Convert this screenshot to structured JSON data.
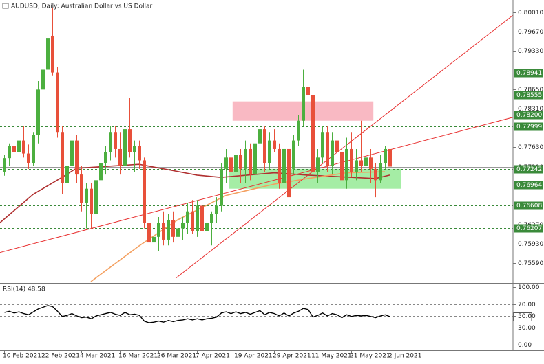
{
  "chart_data": [
    {
      "type": "candlestick",
      "title": "AUDUSD, Daily:  Australian Dollar vs US Dollar",
      "categories": [
        "10 Feb 2021",
        null,
        null,
        null,
        null,
        null,
        null,
        null,
        "22 Feb 2021",
        null,
        null,
        null,
        null,
        null,
        null,
        null,
        "4 Mar 2021",
        null,
        null,
        null,
        null,
        null,
        null,
        null,
        "16 Mar 2021",
        null,
        null,
        null,
        null,
        null,
        null,
        null,
        "26 Mar 2021",
        null,
        null,
        null,
        null,
        null,
        null,
        null,
        "7 Apr 2021",
        null,
        null,
        null,
        null,
        null,
        null,
        null,
        "19 Apr 2021",
        null,
        null,
        null,
        null,
        null,
        null,
        null,
        "29 Apr 2021",
        null,
        null,
        null,
        null,
        null,
        null,
        null,
        "11 May 2021",
        null,
        null,
        null,
        null,
        null,
        null,
        null,
        "21 May 2021",
        null,
        null,
        null,
        null,
        null,
        null,
        null,
        "2 Jun 2021"
      ],
      "open": [
        0.772,
        0.7744,
        0.7765,
        0.7755,
        0.7775,
        0.7752,
        0.7735,
        0.7785,
        0.7865,
        0.79,
        0.796,
        0.7895,
        0.779,
        0.77,
        0.773,
        0.7775,
        0.7715,
        0.7665,
        0.769,
        0.7645,
        0.7705,
        0.7735,
        0.7755,
        0.779,
        0.776,
        0.773,
        0.7795,
        0.7755,
        0.7765,
        0.774,
        0.763,
        0.7595,
        0.7605,
        0.763,
        0.76,
        0.7635,
        0.7605,
        0.762,
        0.763,
        0.765,
        0.7615,
        0.766,
        0.7615,
        0.763,
        0.7645,
        0.766,
        0.7725,
        0.7745,
        0.772,
        0.775,
        0.7725,
        0.776,
        0.7715,
        0.777,
        0.7795,
        0.7735,
        0.7775,
        0.776,
        0.77,
        0.776,
        0.7725,
        0.7775,
        0.781,
        0.787,
        0.7855,
        0.772,
        0.7745,
        0.779,
        0.773,
        0.7775,
        0.7755,
        0.7705,
        0.776,
        0.772,
        0.774,
        0.773,
        0.7745,
        0.7725,
        0.7705,
        0.7735,
        0.776
      ],
      "high": [
        0.775,
        0.777,
        0.7785,
        0.779,
        0.78,
        0.7768,
        0.779,
        0.788,
        0.792,
        0.7975,
        0.801,
        0.7905,
        0.78,
        0.774,
        0.779,
        0.7785,
        0.773,
        0.77,
        0.77,
        0.772,
        0.774,
        0.7765,
        0.78,
        0.78,
        0.779,
        0.7805,
        0.785,
        0.7775,
        0.7775,
        0.7745,
        0.764,
        0.762,
        0.764,
        0.765,
        0.7645,
        0.765,
        0.7625,
        0.764,
        0.7665,
        0.767,
        0.767,
        0.768,
        0.764,
        0.765,
        0.7675,
        0.7735,
        0.776,
        0.777,
        0.7815,
        0.776,
        0.7775,
        0.777,
        0.778,
        0.781,
        0.78,
        0.779,
        0.7795,
        0.777,
        0.778,
        0.777,
        0.7785,
        0.782,
        0.79,
        0.788,
        0.787,
        0.776,
        0.78,
        0.78,
        0.779,
        0.7815,
        0.778,
        0.778,
        0.779,
        0.776,
        0.781,
        0.776,
        0.776,
        0.7735,
        0.775,
        0.7765,
        0.777
      ],
      "low": [
        0.7713,
        0.773,
        0.7745,
        0.774,
        0.7745,
        0.7725,
        0.773,
        0.777,
        0.784,
        0.788,
        0.789,
        0.778,
        0.768,
        0.769,
        0.772,
        0.77,
        0.765,
        0.762,
        0.762,
        0.7635,
        0.7695,
        0.7715,
        0.774,
        0.7745,
        0.7715,
        0.7725,
        0.7745,
        0.772,
        0.7725,
        0.762,
        0.757,
        0.7565,
        0.758,
        0.759,
        0.759,
        0.7595,
        0.7545,
        0.76,
        0.761,
        0.761,
        0.7605,
        0.7605,
        0.758,
        0.759,
        0.763,
        0.765,
        0.77,
        0.7705,
        0.771,
        0.77,
        0.77,
        0.7705,
        0.771,
        0.7755,
        0.772,
        0.7725,
        0.7755,
        0.769,
        0.768,
        0.766,
        0.7715,
        0.7765,
        0.78,
        0.783,
        0.771,
        0.77,
        0.7735,
        0.772,
        0.7715,
        0.774,
        0.769,
        0.769,
        0.771,
        0.7705,
        0.772,
        0.7715,
        0.77,
        0.7675,
        0.77,
        0.7725,
        0.772
      ],
      "close": [
        0.7744,
        0.7765,
        0.7755,
        0.7775,
        0.7752,
        0.7735,
        0.7785,
        0.7865,
        0.79,
        0.7955,
        0.7895,
        0.779,
        0.77,
        0.773,
        0.7775,
        0.7715,
        0.7665,
        0.769,
        0.7645,
        0.7705,
        0.7735,
        0.7755,
        0.779,
        0.776,
        0.773,
        0.7795,
        0.7755,
        0.7765,
        0.774,
        0.763,
        0.7595,
        0.7605,
        0.763,
        0.76,
        0.7635,
        0.7605,
        0.762,
        0.763,
        0.765,
        0.7615,
        0.766,
        0.7615,
        0.763,
        0.7645,
        0.766,
        0.7725,
        0.7745,
        0.772,
        0.775,
        0.7725,
        0.776,
        0.7715,
        0.777,
        0.7795,
        0.7735,
        0.7775,
        0.776,
        0.77,
        0.776,
        0.7675,
        0.7775,
        0.781,
        0.787,
        0.7855,
        0.772,
        0.7745,
        0.779,
        0.773,
        0.7775,
        0.7755,
        0.7705,
        0.776,
        0.772,
        0.774,
        0.773,
        0.7745,
        0.7725,
        0.7705,
        0.7735,
        0.776,
        0.7729
      ],
      "up_color": "#4caf3f",
      "down_color": "#e8503a",
      "ylim": [
        0.7526,
        0.8023
      ],
      "yticks": [
        {
          "value": 0.8001,
          "label": "0.80010"
        },
        {
          "value": 0.7967,
          "label": "0.79670"
        },
        {
          "value": 0.7933,
          "label": "0.79330"
        },
        {
          "value": 0.7865,
          "label": "0.78650"
        },
        {
          "value": 0.7831,
          "label": "0.78310"
        },
        {
          "value": 0.7763,
          "label": "0.77630"
        },
        {
          "value": 0.7729,
          "label": "0.77290"
        },
        {
          "value": 0.7627,
          "label": "0.76270"
        },
        {
          "value": 0.7593,
          "label": "0.75930"
        },
        {
          "value": 0.7559,
          "label": "0.75590"
        }
      ],
      "levels": [
        {
          "value": 0.78941,
          "label": "0.78941"
        },
        {
          "value": 0.78555,
          "label": "0.78555"
        },
        {
          "value": 0.782,
          "label": "0.78200"
        },
        {
          "value": 0.77999,
          "label": "0.77999"
        },
        {
          "value": 0.77242,
          "label": "0.77242"
        },
        {
          "value": 0.76964,
          "label": "0.76964"
        },
        {
          "value": 0.76608,
          "label": "0.76608"
        },
        {
          "value": 0.76207,
          "label": "0.76207"
        }
      ],
      "level_color": "#3a8a3a",
      "price_line": 0.7729,
      "moving_averages": [
        {
          "color": "#b03030",
          "x": [
            -1,
            6,
            12,
            15,
            28,
            40,
            45,
            56,
            63,
            70,
            77,
            80
          ],
          "values": [
            0.7629,
            0.768,
            0.771,
            0.7726,
            0.7733,
            0.7714,
            0.771,
            0.7718,
            0.7714,
            0.7711,
            0.7708,
            0.7714
          ]
        },
        {
          "color": "#f4a060",
          "x": [
            18,
            28,
            36,
            46,
            56,
            63,
            71,
            79
          ],
          "values": [
            0.7526,
            0.7589,
            0.7635,
            0.7678,
            0.7698,
            0.7708,
            0.7718,
            0.772
          ]
        }
      ],
      "trendlines": [
        {
          "color": "#e83030",
          "x": [
            -1,
            106
          ],
          "values": [
            0.7577,
            0.7817
          ]
        },
        {
          "color": "#e83030",
          "x": [
            35.6,
            106
          ],
          "values": [
            0.7532,
            0.7999
          ]
        }
      ],
      "zones": [
        {
          "color": "#f7a8b4",
          "x": [
            47.4,
            76.6
          ],
          "y": [
            0.781,
            0.7844
          ]
        },
        {
          "color": "#8ee88e",
          "x": [
            46.6,
            82.4
          ],
          "y": [
            0.769,
            0.7725
          ]
        }
      ]
    },
    {
      "type": "line",
      "title": "RSI(14) 48.58",
      "color": "#000000",
      "values": [
        56,
        58,
        55,
        57,
        54,
        52,
        57,
        62,
        65,
        68,
        66,
        58,
        49,
        51,
        54,
        50,
        47,
        48,
        45,
        50,
        52,
        54,
        56,
        53,
        51,
        56,
        52,
        53,
        51,
        41,
        38,
        39,
        41,
        39,
        42,
        40,
        42,
        43,
        45,
        43,
        45,
        43,
        45,
        46,
        48,
        55,
        57,
        54,
        57,
        54,
        56,
        53,
        56,
        59,
        52,
        56,
        54,
        50,
        55,
        50,
        55,
        58,
        63,
        61,
        48,
        51,
        55,
        50,
        54,
        52,
        47,
        52,
        49,
        51,
        50,
        51,
        49,
        47,
        50,
        52,
        48.58
      ],
      "ylim": [
        -9.5,
        107.1
      ],
      "yticks": [
        {
          "value": 100,
          "label": "100.00"
        },
        {
          "value": 70,
          "label": "70.00"
        },
        {
          "value": 50,
          "label": "50.00"
        },
        {
          "value": 30,
          "label": "30.00"
        },
        {
          "value": 0,
          "label": "0.00"
        }
      ],
      "levels": [
        70,
        50,
        30
      ]
    }
  ]
}
